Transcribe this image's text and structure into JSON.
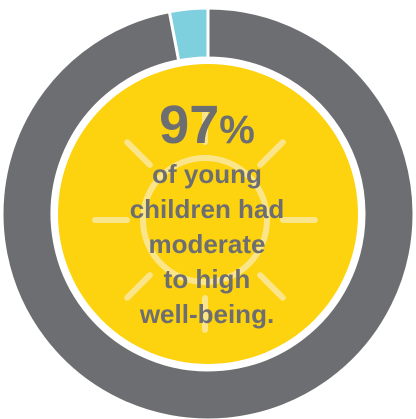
{
  "chart_data": {
    "type": "pie",
    "variant": "donut",
    "slices": [
      {
        "label": "moderate to high well-being",
        "value": 97,
        "color": "#6d6e71"
      },
      {
        "label": "",
        "value": 3,
        "color": "#7fd0de"
      }
    ],
    "center": {
      "value_number": "97",
      "value_unit": "%",
      "lines": [
        "of young",
        "children had",
        "moderate",
        "to high",
        "well-being."
      ]
    },
    "colors": {
      "center_fill": "#fdd20f",
      "sun_rays": "#fbe58a",
      "text": "#6d6e71"
    }
  }
}
